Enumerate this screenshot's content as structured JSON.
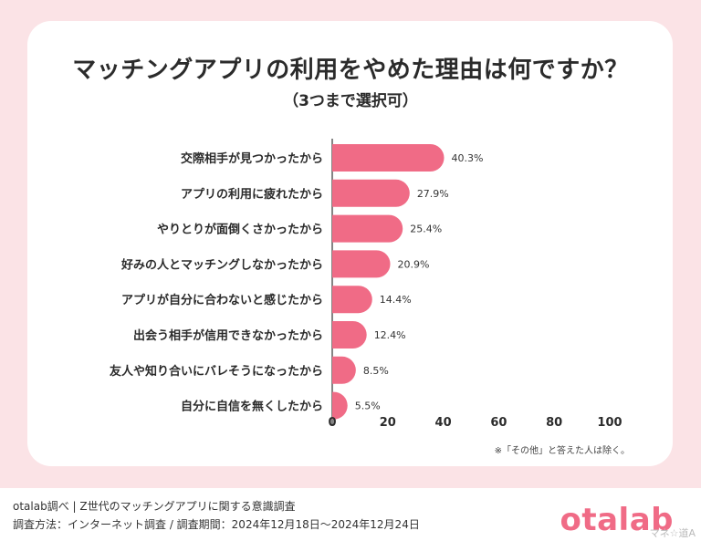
{
  "title": "マッチングアプリの利用をやめた理由は何ですか？",
  "subtitle": "（3つまで選択可）",
  "note": "※「その他」と答えた人は除く。",
  "footer": {
    "source": "otalab調べ | Z世代のマッチングアプリに関する意識調査",
    "method": "調査方法：インターネット調査 / 調査期間：2024年12月18日〜2024年12月24日"
  },
  "brand": "otalab",
  "watermark": "マネ☆道A",
  "colors": {
    "bar": "#f06b86",
    "page_bg": "#fbe3e6",
    "axis": "#333333"
  },
  "chart_data": {
    "type": "bar",
    "orientation": "horizontal",
    "categories": [
      "交際相手が見つかったから",
      "アプリの利用に疲れたから",
      "やりとりが面倒くさかったから",
      "好みの人とマッチングしなかったから",
      "アプリが自分に合わないと感じたから",
      "出会う相手が信用できなかったから",
      "友人や知り合いにバレそうになったから",
      "自分に自信を無くしたから"
    ],
    "values": [
      40.3,
      27.9,
      25.4,
      20.9,
      14.4,
      12.4,
      8.5,
      5.5
    ],
    "value_labels": [
      "40.3%",
      "27.9%",
      "25.4%",
      "20.9%",
      "14.4%",
      "12.4%",
      "8.5%",
      "5.5%"
    ],
    "xlim": [
      0,
      100
    ],
    "xticks": [
      "0",
      "20",
      "40",
      "60",
      "80",
      "100"
    ],
    "xlabel": "",
    "ylabel": "",
    "grid": false,
    "legend": "none"
  }
}
